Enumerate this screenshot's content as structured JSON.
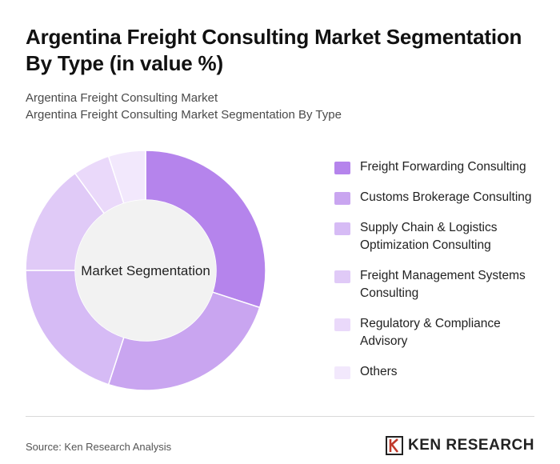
{
  "header": {
    "title": "Argentina Freight Consulting Market Segmentation By Type (in value %)",
    "subtitle_1": "Argentina Freight Consulting Market",
    "subtitle_2": "Argentina Freight Consulting Market Segmentation By Type"
  },
  "chart_data": {
    "type": "pie",
    "variant": "donut",
    "center_label": "Market Segmentation",
    "legend_position": "right",
    "series": [
      {
        "name": "Freight Forwarding Consulting",
        "value": 30,
        "color": "#b584ec"
      },
      {
        "name": "Customs Brokerage Consulting",
        "value": 25,
        "color": "#c9a5f0"
      },
      {
        "name": "Supply Chain & Logistics Optimization Consulting",
        "value": 20,
        "color": "#d6bbf5"
      },
      {
        "name": "Freight Management Systems Consulting",
        "value": 15,
        "color": "#e0caf7"
      },
      {
        "name": "Regulatory & Compliance Advisory",
        "value": 5,
        "color": "#ead9fa"
      },
      {
        "name": "Others",
        "value": 5,
        "color": "#f2e8fc"
      }
    ]
  },
  "footer": {
    "source": "Source: Ken Research Analysis",
    "brand": "KEN RESEARCH"
  }
}
